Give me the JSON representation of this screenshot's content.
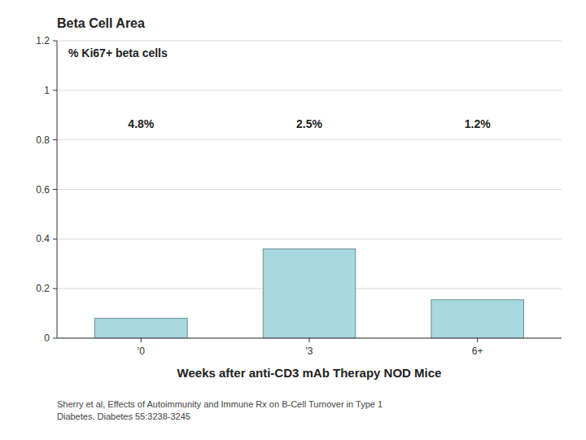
{
  "chart_data": {
    "type": "bar",
    "title": "Beta Cell Area",
    "x_label": "Weeks after anti-CD3 mAb Therapy NOD Mice",
    "categories": [
      "'0",
      "'3",
      "6+"
    ],
    "values": [
      0.08,
      0.36,
      0.155
    ],
    "color": "#a8d8e0",
    "ylim": [
      0,
      1.2
    ],
    "yticks": [
      0,
      0.2,
      0.4,
      0.6,
      0.8,
      1,
      1.2
    ],
    "grid": true,
    "annotations": [
      {
        "text": "% Ki67+ beta cells"
      },
      {
        "text": "4.8%",
        "x": "'0",
        "y": 0.865
      },
      {
        "text": "2.5%",
        "x": "'3",
        "y": 0.865
      },
      {
        "text": "1.2%",
        "x": "6+",
        "y": 0.865
      },
      {
        "text": "Sherry et al, Effects of Autoimmunity and Immune Rx on B-Cell Turnover in Type 1\nDiabetes.  Diabetes  55:3238-3245"
      }
    ]
  }
}
